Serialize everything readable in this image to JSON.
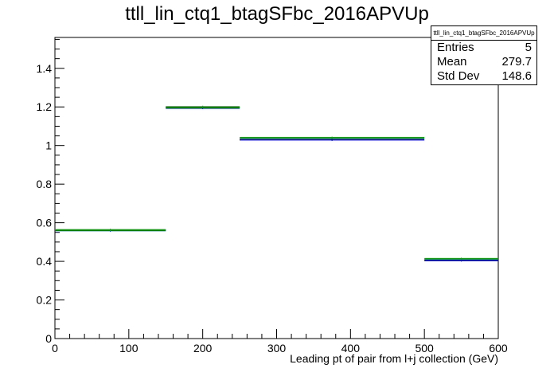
{
  "chart_data": {
    "type": "histogram",
    "title": "ttll_lin_ctq1_btagSFbc_2016APVUp",
    "xlabel": "Leading pt of pair from l+j collection (GeV)",
    "ylabel": "",
    "xlim": [
      0,
      600
    ],
    "ylim": [
      0,
      1.56
    ],
    "x_ticks": [
      0,
      100,
      200,
      300,
      400,
      500,
      600
    ],
    "x_tick_labels": [
      "0",
      "100",
      "200",
      "300",
      "400",
      "500",
      "600"
    ],
    "y_ticks": [
      0,
      0.2,
      0.4,
      0.6,
      0.8,
      1.0,
      1.2,
      1.4
    ],
    "y_tick_labels": [
      "0",
      "0.2",
      "0.4",
      "0.6",
      "0.8",
      "1",
      "1.2",
      "1.4"
    ],
    "bin_edges": [
      0,
      150,
      250,
      500,
      600
    ],
    "series": [
      {
        "color": "#0000cc",
        "values": [
          0.56,
          1.195,
          1.03,
          0.405
        ]
      },
      {
        "color": "#00aa00",
        "values": [
          0.563,
          1.2,
          1.04,
          0.413
        ]
      }
    ],
    "grid": false,
    "stats_box": {
      "name": "ttll_lin_ctq1_btagSFbc_2016APVUp",
      "rows": [
        {
          "label": "Entries",
          "value": "5"
        },
        {
          "label": "Mean",
          "value": "279.7"
        },
        {
          "label": "Std Dev",
          "value": "148.6"
        }
      ]
    }
  }
}
